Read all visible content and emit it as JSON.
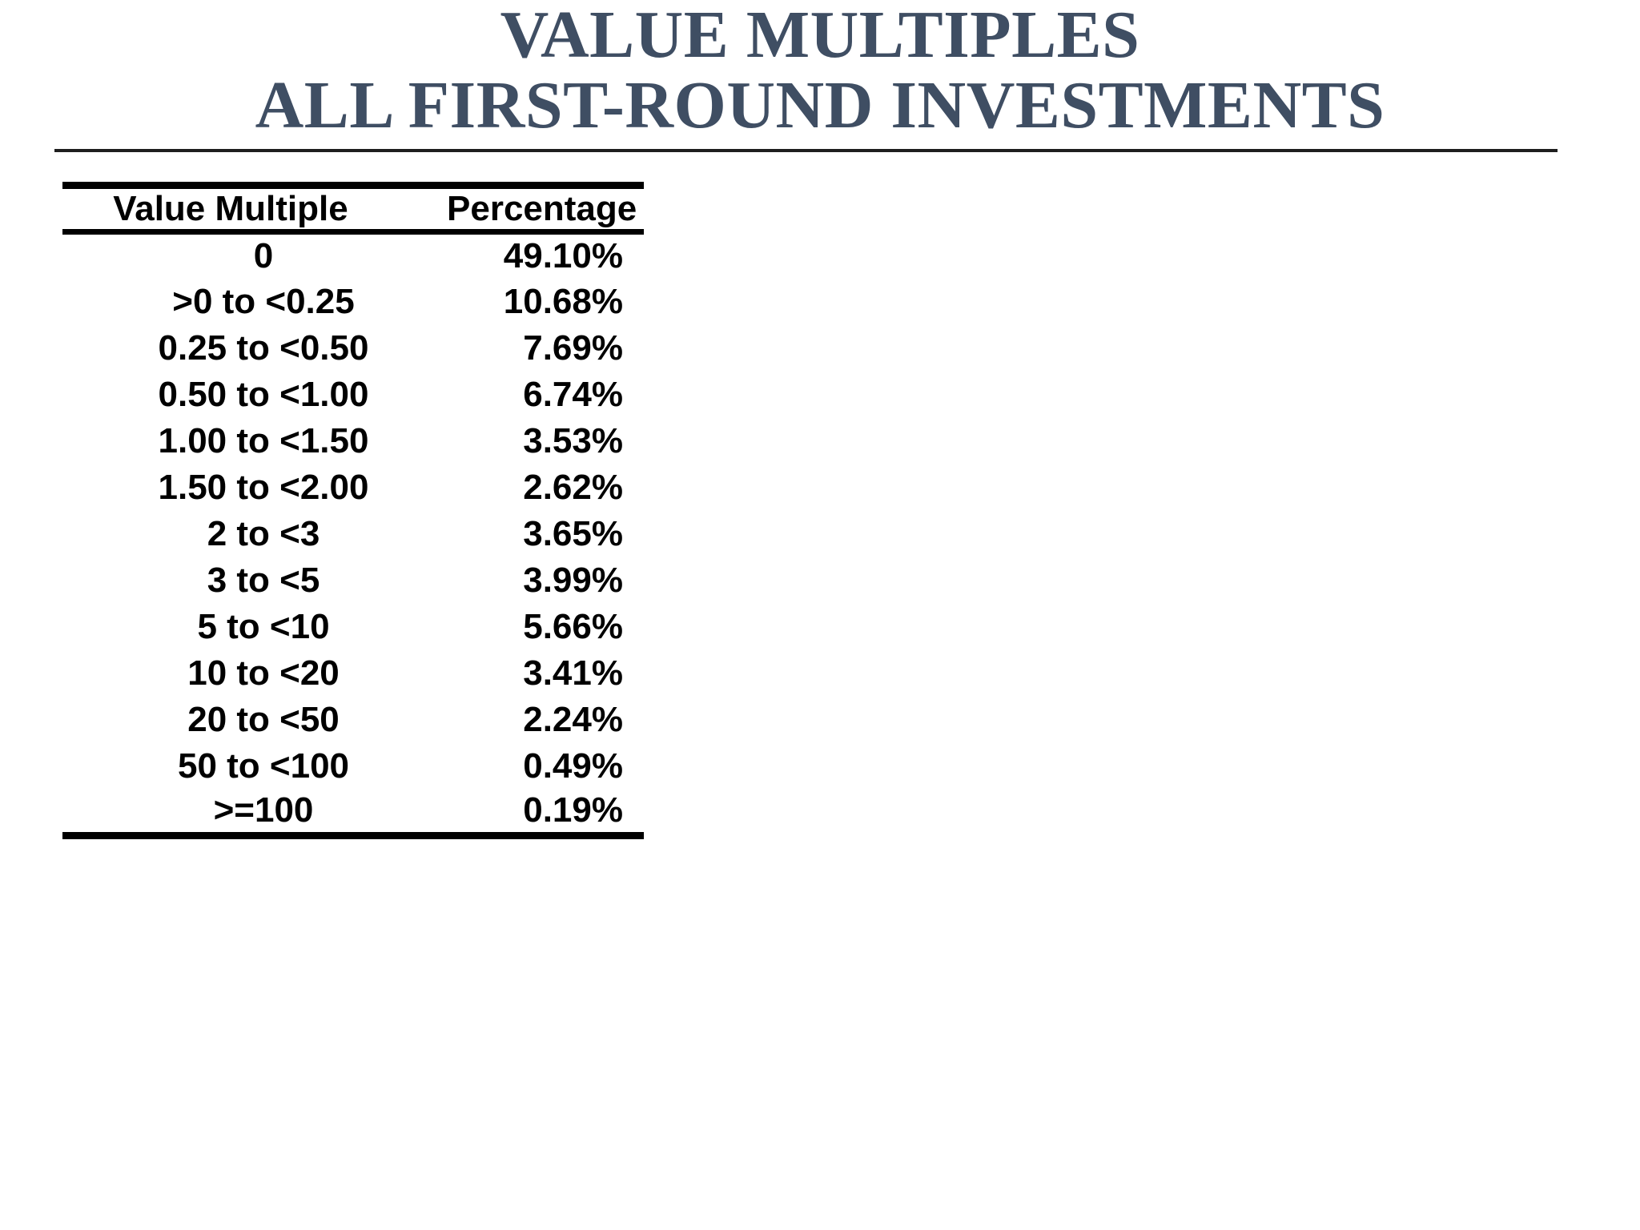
{
  "page": {
    "title": {
      "line1": "VALUE MULTIPLES",
      "line2": "ALL FIRST-ROUND INVESTMENTS"
    },
    "title_color": "#3f4e63",
    "background_color": "#ffffff",
    "rule_color": "#1e1e1e",
    "table_text_color": "#000000"
  },
  "table": {
    "headers": {
      "multiple": "Value Multiple",
      "percentage": "Percentage"
    },
    "rows": [
      {
        "multiple": "0",
        "percentage": "49.10%"
      },
      {
        "multiple": ">0 to <0.25",
        "percentage": "10.68%"
      },
      {
        "multiple": "0.25 to <0.50",
        "percentage": "7.69%"
      },
      {
        "multiple": "0.50 to <1.00",
        "percentage": "6.74%"
      },
      {
        "multiple": "1.00 to <1.50",
        "percentage": "3.53%"
      },
      {
        "multiple": "1.50 to <2.00",
        "percentage": "2.62%"
      },
      {
        "multiple": "2 to <3",
        "percentage": "3.65%"
      },
      {
        "multiple": "3 to <5",
        "percentage": "3.99%"
      },
      {
        "multiple": "5 to <10",
        "percentage": "5.66%"
      },
      {
        "multiple": "10 to <20",
        "percentage": "3.41%"
      },
      {
        "multiple": "20 to <50",
        "percentage": "2.24%"
      },
      {
        "multiple": "50 to <100",
        "percentage": "0.49%"
      },
      {
        "multiple": ">=100",
        "percentage": "0.19%"
      }
    ]
  },
  "chart_data": {
    "type": "table",
    "title": "VALUE MULTIPLES - ALL FIRST-ROUND INVESTMENTS",
    "columns": [
      "Value Multiple",
      "Percentage"
    ],
    "categories": [
      "0",
      ">0 to <0.25",
      "0.25 to <0.50",
      "0.50 to <1.00",
      "1.00 to <1.50",
      "1.50 to <2.00",
      "2 to <3",
      "3 to <5",
      "5 to <10",
      "10 to <20",
      "20 to <50",
      "50 to <100",
      ">=100"
    ],
    "values_percent": [
      49.1,
      10.68,
      7.69,
      6.74,
      3.53,
      2.62,
      3.65,
      3.99,
      5.66,
      3.41,
      2.24,
      0.49,
      0.19
    ]
  }
}
